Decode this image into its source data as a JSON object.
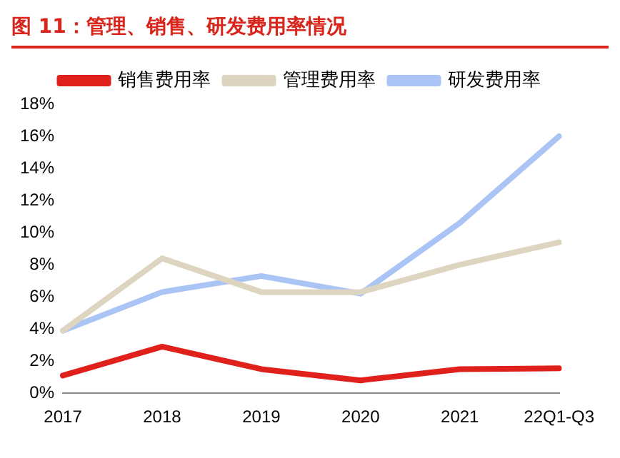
{
  "chart_data": {
    "type": "line",
    "title": "图 11：管理、销售、研发费用率情况",
    "categories": [
      "2017",
      "2018",
      "2019",
      "2020",
      "2021",
      "22Q1-Q3"
    ],
    "series": [
      {
        "name": "销售费用率",
        "color": "#e0201b",
        "values": [
          1.1,
          2.9,
          1.5,
          0.8,
          1.5,
          1.55
        ]
      },
      {
        "name": "管理费用率",
        "color": "#ddd5c0",
        "values": [
          3.9,
          8.4,
          6.3,
          6.3,
          8.0,
          9.4
        ]
      },
      {
        "name": "研发费用率",
        "color": "#a9c4f5",
        "values": [
          3.9,
          6.3,
          7.3,
          6.2,
          10.6,
          16.0
        ]
      }
    ],
    "ylim": [
      0,
      18
    ],
    "yticks": [
      {
        "value": 0,
        "label": "0%"
      },
      {
        "value": 2,
        "label": "2%"
      },
      {
        "value": 4,
        "label": "4%"
      },
      {
        "value": 6,
        "label": "6%"
      },
      {
        "value": 8,
        "label": "8%"
      },
      {
        "value": 10,
        "label": "10%"
      },
      {
        "value": 12,
        "label": "12%"
      },
      {
        "value": 14,
        "label": "14%"
      },
      {
        "value": 16,
        "label": "16%"
      },
      {
        "value": 18,
        "label": "18%"
      }
    ],
    "grid": false,
    "legend": "top",
    "marker": "none",
    "line_style": "solid"
  }
}
